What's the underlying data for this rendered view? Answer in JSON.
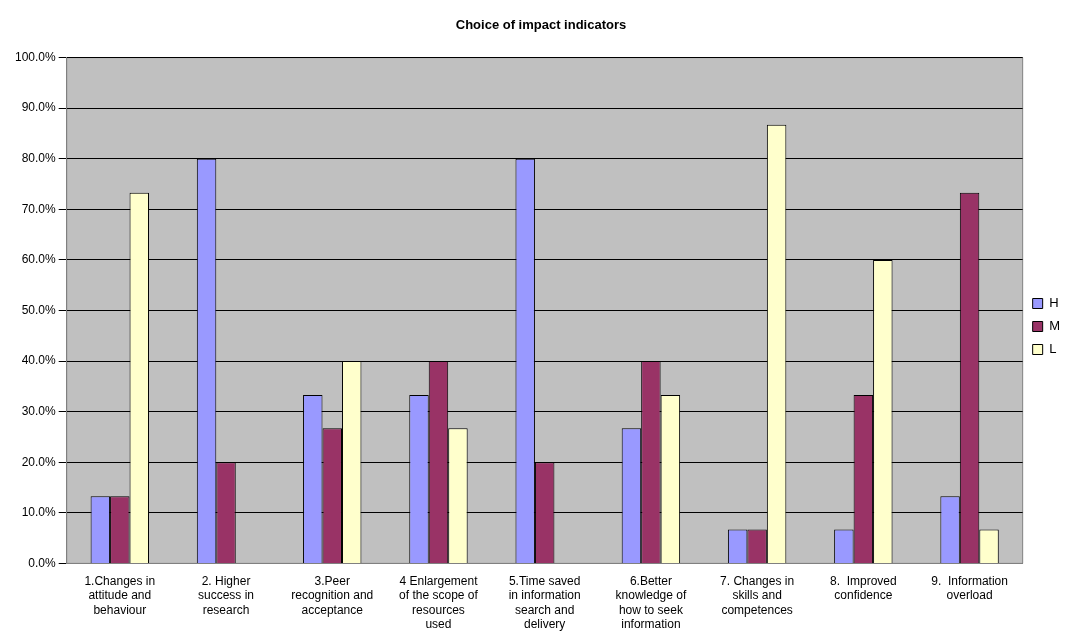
{
  "chart_data": {
    "type": "bar",
    "title": "Choice of impact indicators",
    "categories": [
      "1.Changes in\nattitude and\nbehaviour",
      "2. Higher\nsuccess in\nresearch",
      "3.Peer\nrecognition and\nacceptance",
      "4 Enlargement\nof the scope of\nresources\nused",
      "5.Time saved\nin information\nsearch and\ndelivery",
      "6.Better\nknowledge of\nhow to seek\ninformation",
      "7. Changes in\nskills and\ncompetences",
      "8.  Improved\nconfidence",
      "9.  Information\noverload"
    ],
    "series": [
      {
        "name": "H",
        "color": "#9999ff",
        "values": [
          13.3,
          80,
          33.3,
          33.3,
          80,
          26.7,
          6.7,
          6.7,
          13.3
        ]
      },
      {
        "name": "M",
        "color": "#993366",
        "values": [
          13.3,
          20,
          26.7,
          40,
          20,
          40,
          6.7,
          33.3,
          73.3
        ]
      },
      {
        "name": "L",
        "color": "#ffffcc",
        "values": [
          73.3,
          0,
          40,
          26.7,
          0,
          33.3,
          86.7,
          60,
          6.7
        ]
      }
    ],
    "ylim": [
      0,
      100
    ],
    "yticks": [
      {
        "value": 0,
        "label": "0.0%"
      },
      {
        "value": 10,
        "label": "10.0%"
      },
      {
        "value": 20,
        "label": "20.0%"
      },
      {
        "value": 30,
        "label": "30.0%"
      },
      {
        "value": 40,
        "label": "40.0%"
      },
      {
        "value": 50,
        "label": "50.0%"
      },
      {
        "value": 60,
        "label": "60.0%"
      },
      {
        "value": 70,
        "label": "70.0%"
      },
      {
        "value": 80,
        "label": "80.0%"
      },
      {
        "value": 90,
        "label": "90.0%"
      },
      {
        "value": 100,
        "label": "100.0%"
      }
    ],
    "grid": "y",
    "legend": "right"
  }
}
